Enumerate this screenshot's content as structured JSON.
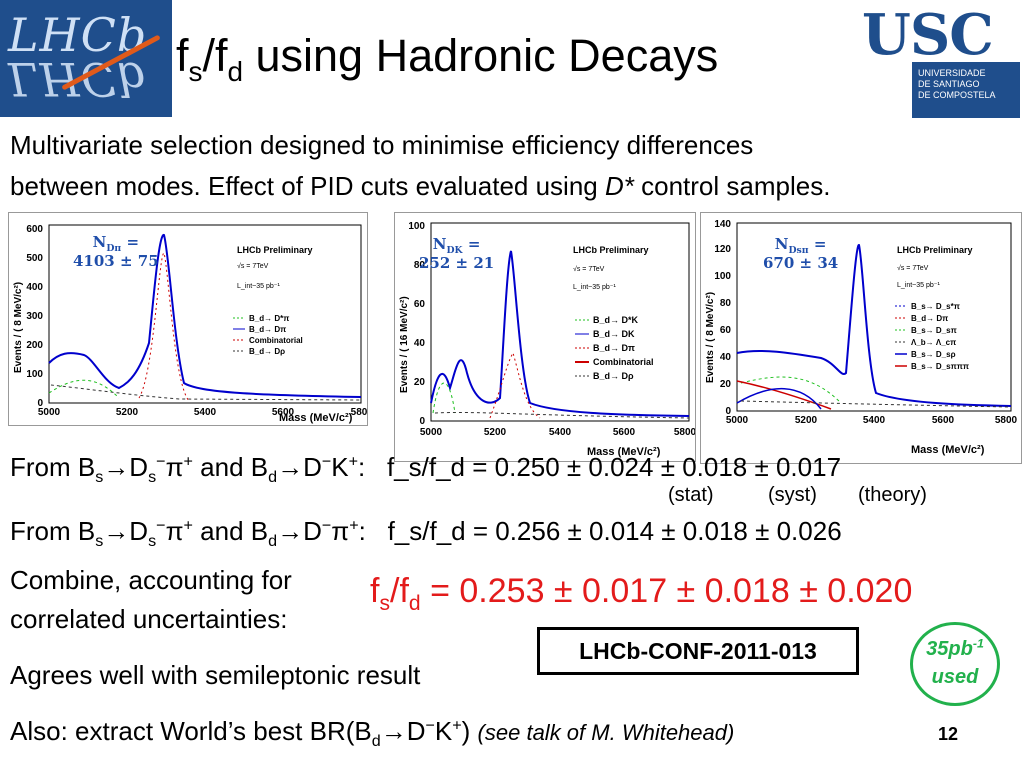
{
  "header": {
    "title_f1": "f",
    "title_s": "s",
    "title_slash": "/f",
    "title_d": "d",
    "title_rest": " using Hadronic Decays",
    "left_logo": "LHCb",
    "right_logo": "USC",
    "right_logo_sub": [
      "UNIVERSIDADE",
      "DE SANTIAGO",
      "DE COMPOSTELA"
    ]
  },
  "intro": [
    "Multivariate selection designed to minimise efficiency differences",
    "between modes. Effect of PID cuts evaluated using ",
    "D*",
    " control samples."
  ],
  "plots": [
    {
      "yield_label": "N",
      "yield_sub": "Dπ",
      "yield_eq": " =",
      "yield_value": "4103 ± 75",
      "ylabel": "Events / ( 8 MeV/c²)",
      "xlabel": "Mass (MeV/c²)",
      "preliminary": "LHCb Preliminary",
      "energy": "√s = 7TeV",
      "lumi": "L_int~35 pb⁻¹",
      "x_ticks": [
        "5000",
        "5200",
        "5400",
        "5600",
        "580"
      ],
      "y_ticks": [
        "0",
        "100",
        "200",
        "300",
        "400",
        "500",
        "600"
      ],
      "legend": [
        "B_d→ D*π",
        "B_d→ Dπ",
        "Combinatorial",
        "B_d→ Dρ"
      ]
    },
    {
      "yield_label": "N",
      "yield_sub": "DK",
      "yield_eq": " =",
      "yield_value": "252 ± 21",
      "ylabel": "Events / ( 16 MeV/c²)",
      "xlabel": "Mass (MeV/c²)",
      "preliminary": "LHCb Preliminary",
      "energy": "√s = 7TeV",
      "lumi": "L_int~35 pb⁻¹",
      "x_ticks": [
        "5000",
        "5200",
        "5400",
        "5600",
        "5800"
      ],
      "y_ticks": [
        "0",
        "20",
        "40",
        "60",
        "80",
        "100"
      ],
      "legend": [
        "B_d→ D*K",
        "B_d→ DK",
        "B_d→ Dπ",
        "Combinatorial",
        "B_d→ Dρ"
      ]
    },
    {
      "yield_label": "N",
      "yield_sub": "Dsπ",
      "yield_eq": " =",
      "yield_value": "670 ± 34",
      "ylabel": "Events / ( 8 MeV/c²)",
      "xlabel": "Mass (MeV/c²)",
      "preliminary": "LHCb Preliminary",
      "energy": "√s = 7TeV",
      "lumi": "L_int~35 pb⁻¹",
      "x_ticks": [
        "5000",
        "5200",
        "5400",
        "5600",
        "5800"
      ],
      "y_ticks": [
        "0",
        "20",
        "40",
        "60",
        "80",
        "100",
        "120",
        "140"
      ],
      "legend": [
        "B_s→ D_s*π",
        "B_d→ Dπ",
        "B_s→ D_sπ",
        "Λ_b→ Λ_cπ",
        "B_s→ D_sρ",
        "B_s→ D_sπππ"
      ]
    }
  ],
  "results": {
    "line1_value": "f_s/f_d = 0.250 ± 0.024 ± 0.018 ± 0.017",
    "line1_labels": [
      "(stat)",
      "(syst)",
      "(theory)"
    ],
    "line2_value": "f_s/f_d = 0.256 ± 0.014 ± 0.018 ± 0.026",
    "combine_1": "Combine, accounting for",
    "combine_2": "correlated uncertainties:",
    "combined_value": " = 0.253 ± 0.017 ± 0.018 ± 0.020",
    "agrees": "Agrees well with semileptonic result",
    "conf": "LHCb-CONF-2011-013",
    "lumi_top": "35pb",
    "lumi_sup": "-1",
    "lumi_bottom": "used",
    "also": "Also: extract World’s best BR(B",
    "also_note": "(see talk of M. Whitehead)"
  },
  "page_number": "12",
  "colors": {
    "red": "#e31b1b",
    "blue": "#1f4e8c",
    "green": "#22b14c"
  }
}
